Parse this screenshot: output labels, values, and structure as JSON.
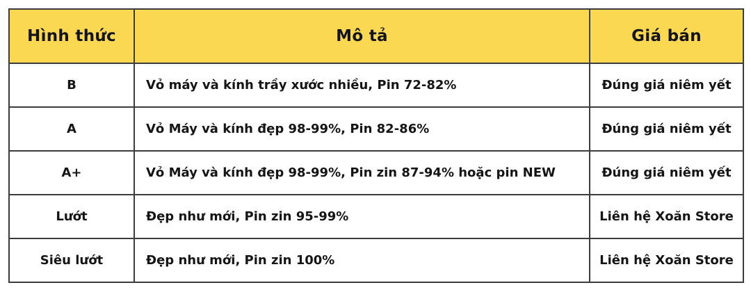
{
  "table": {
    "headers": {
      "condition": "Hình thức",
      "description": "Mô tả",
      "price": "Giá bán"
    },
    "rows": [
      {
        "grade": "B",
        "description": "Vỏ máy và kính trầy xước nhiều, Pin 72-82%",
        "price": "Đúng giá niêm yết"
      },
      {
        "grade": "A",
        "description": "Vỏ Máy và kính đẹp 98-99%, Pin 82-86%",
        "price": "Đúng giá niêm yết"
      },
      {
        "grade": "A+",
        "description": "Vỏ Máy và kính đẹp 98-99%, Pin zin 87-94% hoặc pin NEW",
        "price": "Đúng giá niêm yết"
      },
      {
        "grade": "Lướt",
        "description": "Đẹp như mới, Pin zin 95-99%",
        "price": "Liên hệ Xoăn Store"
      },
      {
        "grade": "Siêu lướt",
        "description": "Đẹp như mới, Pin zin 100%",
        "price": "Liên hệ Xoăn Store"
      }
    ],
    "colors": {
      "header_bg": "#fbd851",
      "price_text": "#f43b3b",
      "border": "#3c3c3c",
      "body_text": "#151515"
    }
  }
}
